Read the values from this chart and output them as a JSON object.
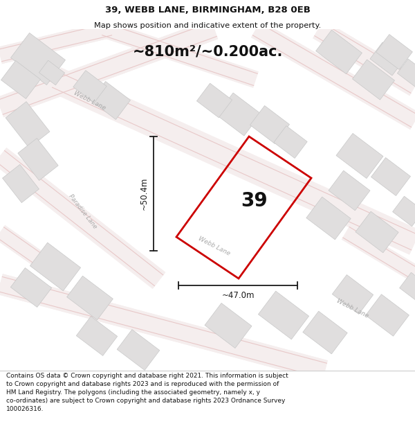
{
  "title_line1": "39, WEBB LANE, BIRMINGHAM, B28 0EB",
  "title_line2": "Map shows position and indicative extent of the property.",
  "area_text": "~810m²/~0.200ac.",
  "dim_height": "~50.4m",
  "dim_width": "~47.0m",
  "property_number": "39",
  "footer_lines": "Contains OS data © Crown copyright and database right 2021. This information is subject\nto Crown copyright and database rights 2023 and is reproduced with the permission of\nHM Land Registry. The polygons (including the associated geometry, namely x, y\nco-ordinates) are subject to Crown copyright and database rights 2023 Ordnance Survey\n100026316.",
  "map_bg": "#f2efef",
  "road_surface": "#f5eeee",
  "road_line_color": "#e8c8c8",
  "building_fill": "#e0dede",
  "building_edge": "#c8c8c8",
  "property_color": "#cc0000",
  "dim_color": "#1a1a1a",
  "label_color": "#aaaaaa",
  "title_color": "#111111",
  "footer_color": "#111111",
  "white": "#ffffff"
}
